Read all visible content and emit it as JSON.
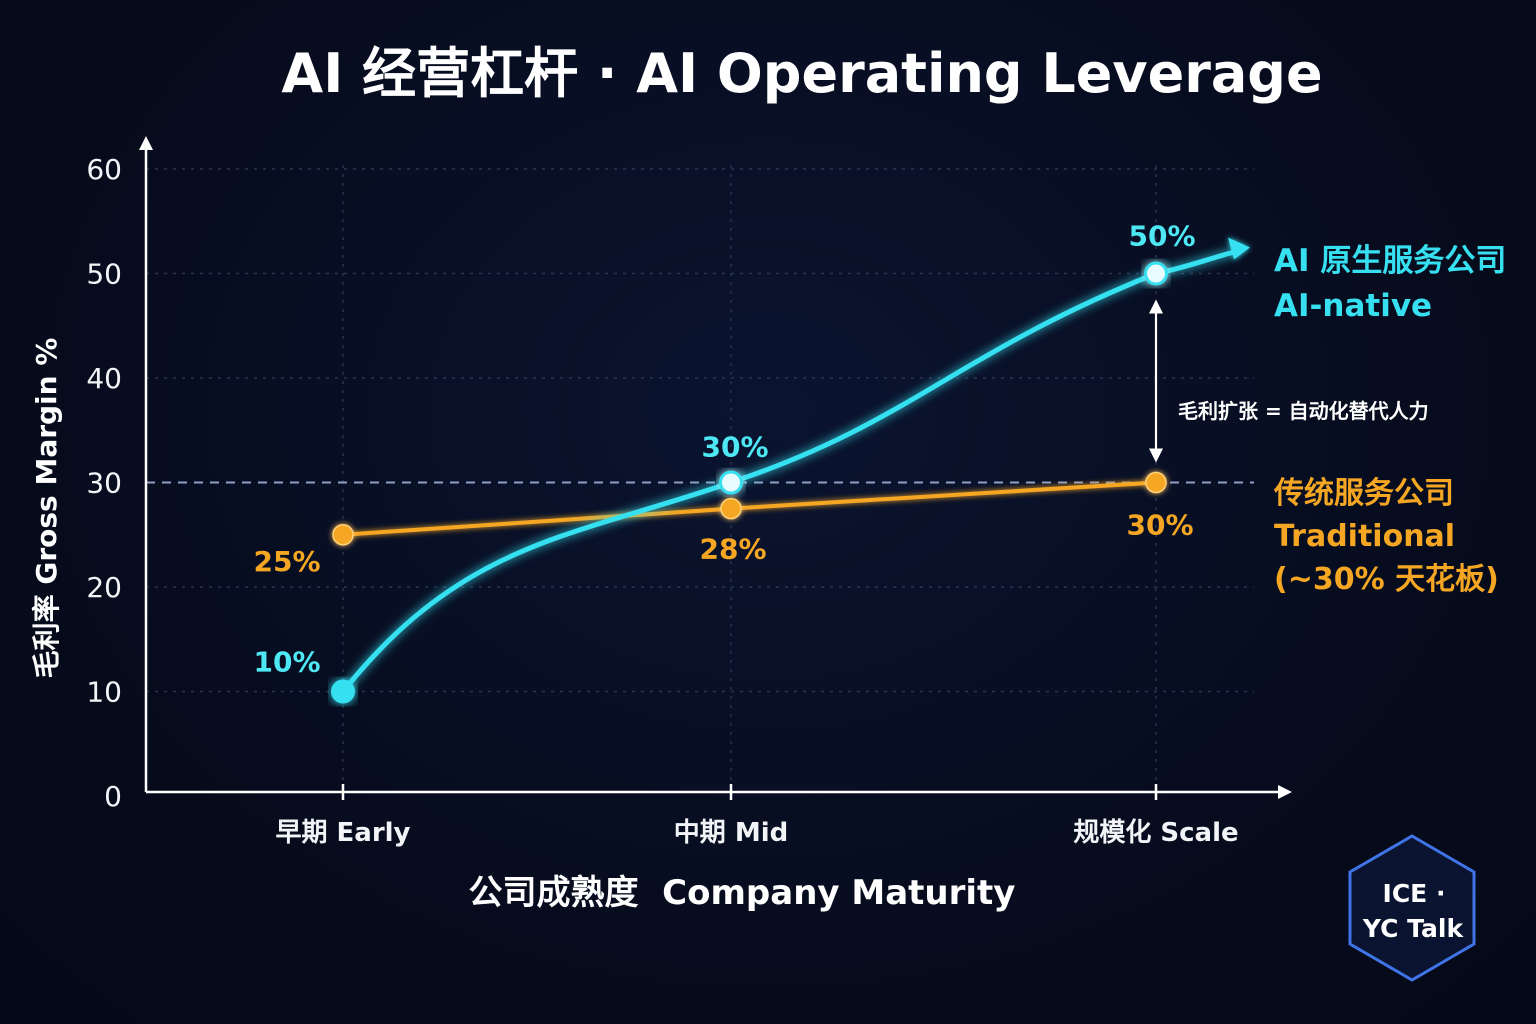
{
  "chart_data": {
    "type": "line",
    "title": "AI 经营杠杆 · AI Operating Leverage",
    "xlabel": "公司成熟度  Company Maturity",
    "ylabel": "毛利率 Gross Margin %",
    "categories": [
      "早期 Early",
      "中期 Mid",
      "规模化 Scale"
    ],
    "ylim": [
      0,
      60
    ],
    "yticks": [
      "0",
      "10",
      "20",
      "30",
      "40",
      "50",
      "60"
    ],
    "grid": true,
    "series": [
      {
        "name_lines": [
          "AI 原生服务公司",
          "AI-native"
        ],
        "values": [
          10,
          30,
          50
        ],
        "data_labels": [
          "10%",
          "30%",
          "50%"
        ],
        "color": "#36e0f0"
      },
      {
        "name_lines": [
          "传统服务公司",
          "Traditional",
          "(~30% 天花板)"
        ],
        "values": [
          25,
          27.5,
          30
        ],
        "data_labels": [
          "25%",
          "28%",
          "30%"
        ],
        "color": "#f5a623"
      }
    ],
    "reference_line": {
      "value": 30,
      "style": "dashed",
      "color": "#8fa0c8"
    },
    "annotation": "毛利扩张 = 自动化替代人力",
    "legend_placement": "right"
  },
  "badge": {
    "line1": "ICE ·",
    "line2": "YC Talk",
    "color": "#3f74e6"
  }
}
